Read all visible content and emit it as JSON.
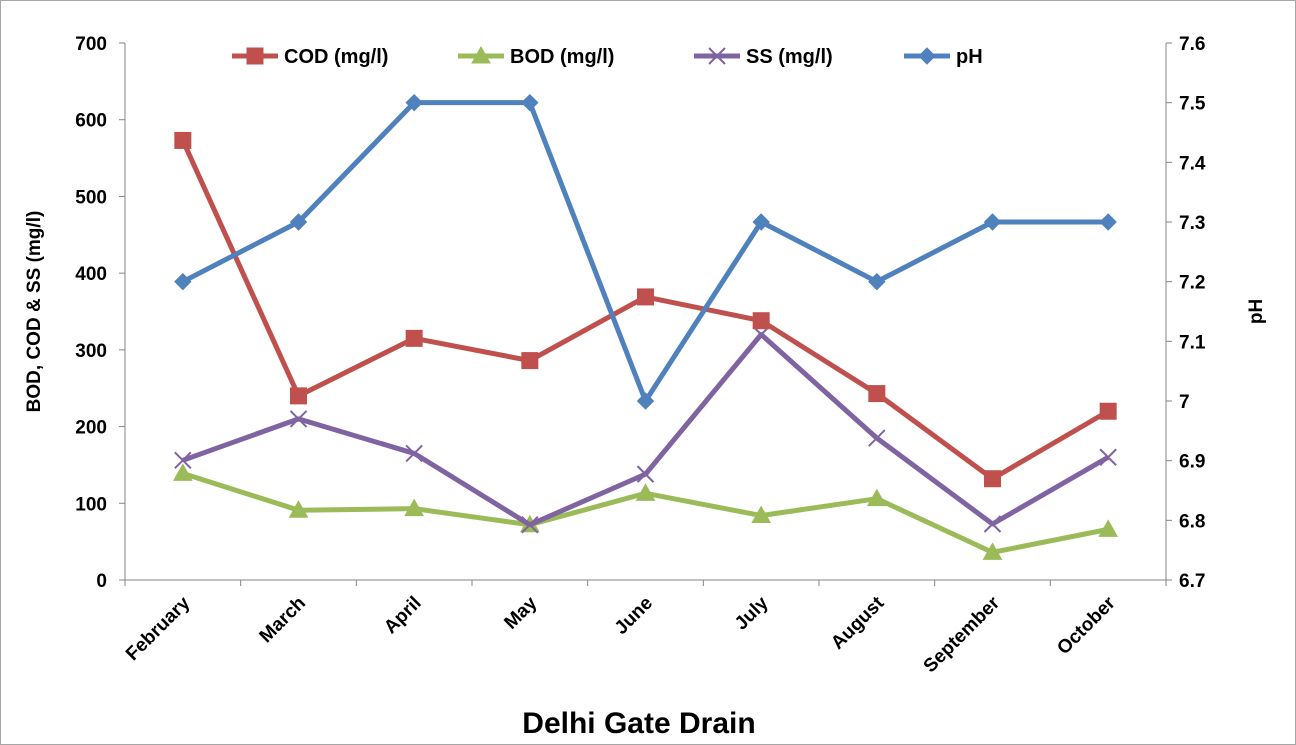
{
  "chart_data": {
    "type": "line",
    "title": "Delhi Gate Drain",
    "xlabel": "",
    "ylabel": "BOD, COD & SS (mg/l)",
    "y2label": "pH",
    "categories": [
      "February",
      "March",
      "April",
      "May",
      "June",
      "July",
      "August",
      "September",
      "October"
    ],
    "ylim": [
      0,
      700
    ],
    "yticks": [
      "0",
      "100",
      "200",
      "300",
      "400",
      "500",
      "600",
      "700"
    ],
    "y2lim": [
      6.7,
      7.6
    ],
    "y2ticks": [
      "6.7",
      "6.8",
      "6.9",
      "7",
      "7.1",
      "7.2",
      "7.3",
      "7.4",
      "7.5",
      "7.6"
    ],
    "grid": false,
    "legend_position": "top",
    "series": [
      {
        "name": "COD (mg/l)",
        "axis": "left",
        "marker": "square",
        "color": "#C0504D",
        "values": [
          573,
          240,
          315,
          286,
          369,
          338,
          243,
          132,
          220
        ]
      },
      {
        "name": "BOD (mg/l)",
        "axis": "left",
        "marker": "triangle",
        "color": "#9BBB59",
        "values": [
          139,
          91,
          93,
          72,
          113,
          84,
          106,
          36,
          66
        ]
      },
      {
        "name": "SS (mg/l)",
        "axis": "left",
        "marker": "x",
        "color": "#8064A2",
        "values": [
          156,
          210,
          165,
          72,
          138,
          320,
          185,
          73,
          160
        ]
      },
      {
        "name": "pH",
        "axis": "right",
        "marker": "diamond",
        "color": "#4F81BD",
        "values": [
          7.2,
          7.3,
          7.5,
          7.5,
          7.0,
          7.3,
          7.2,
          7.3,
          7.3
        ]
      }
    ]
  }
}
